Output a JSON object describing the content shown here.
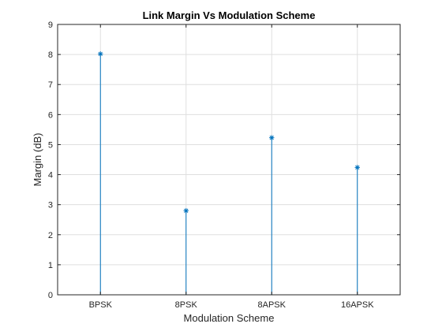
{
  "chart_data": {
    "type": "stem",
    "title": "Link Margin Vs Modulation Scheme",
    "xlabel": "Modulation Scheme",
    "ylabel": "Margin (dB)",
    "categories": [
      "BPSK",
      "8PSK",
      "8APSK",
      "16APSK"
    ],
    "values": [
      8.02,
      2.8,
      5.23,
      4.24
    ],
    "ylim": [
      0,
      9
    ],
    "yticks": [
      "0",
      "1",
      "2",
      "3",
      "4",
      "5",
      "6",
      "7",
      "8",
      "9"
    ],
    "grid": true,
    "marker": "asterisk",
    "series_color": "#0072BD",
    "grid_color": "#dfdfdf",
    "axis_color": "#262626"
  }
}
